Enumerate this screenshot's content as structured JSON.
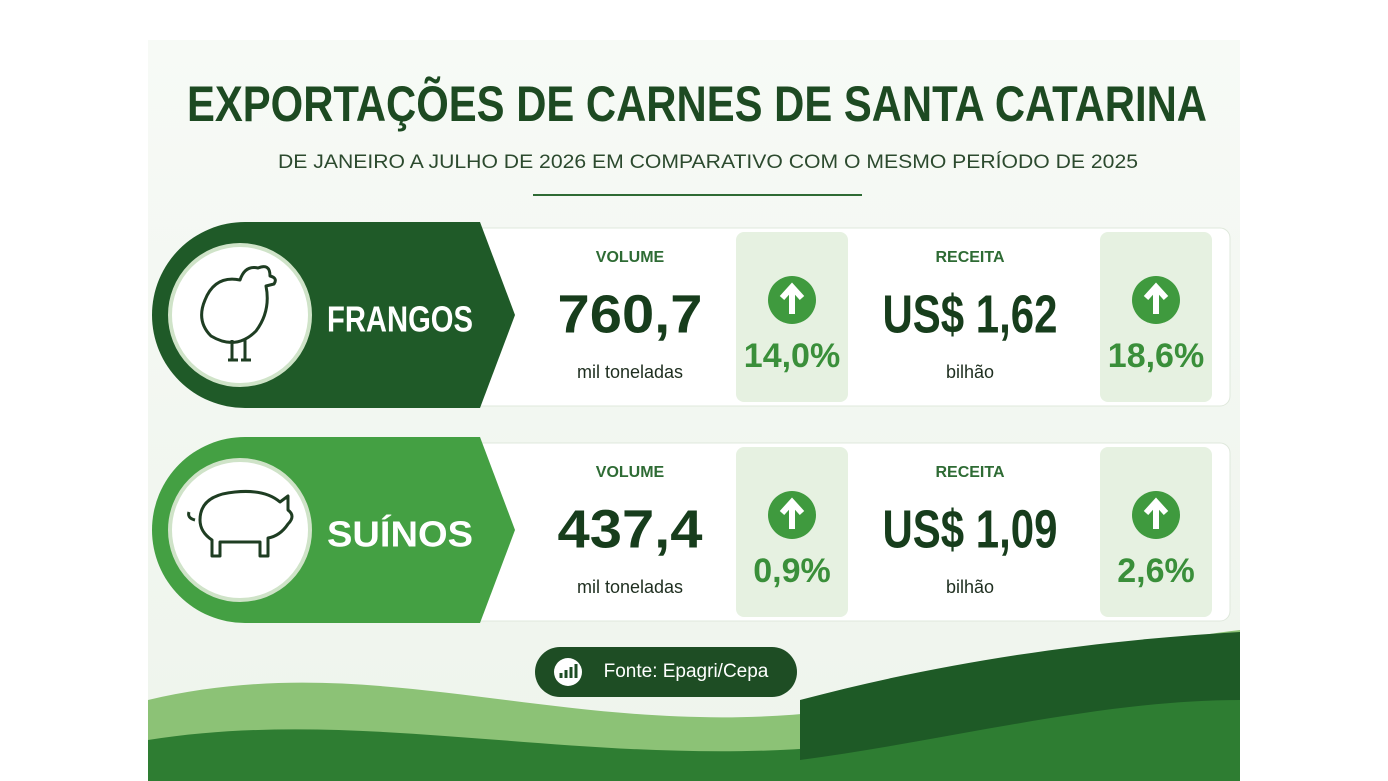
{
  "header": {
    "title": "EXPORTAÇÕES DE CARNES DE SANTA CATARINA",
    "subtitle": "DE JANEIRO A JULHO DE 2026 EM COMPARATIVO COM O MESMO PERÍODO DE 2025"
  },
  "rows": [
    {
      "label": "FRANGOS",
      "volume_label": "VOLUME",
      "volume_value": "760,7",
      "volume_unit": "mil toneladas",
      "volume_change": "14,0%",
      "revenue_label": "RECEITA",
      "revenue_value": "US$ 1,62",
      "revenue_unit": "bilhão",
      "revenue_change": "18,6%"
    },
    {
      "label": "SUÍNOS",
      "volume_label": "VOLUME",
      "volume_value": "437,4",
      "volume_unit": "mil toneladas",
      "volume_change": "0,9%",
      "revenue_label": "RECEITA",
      "revenue_value": "US$ 1,09",
      "revenue_unit": "bilhão",
      "revenue_change": "2,6%"
    }
  ],
  "footer": {
    "source": "Fonte: Epagri/Cepa"
  }
}
